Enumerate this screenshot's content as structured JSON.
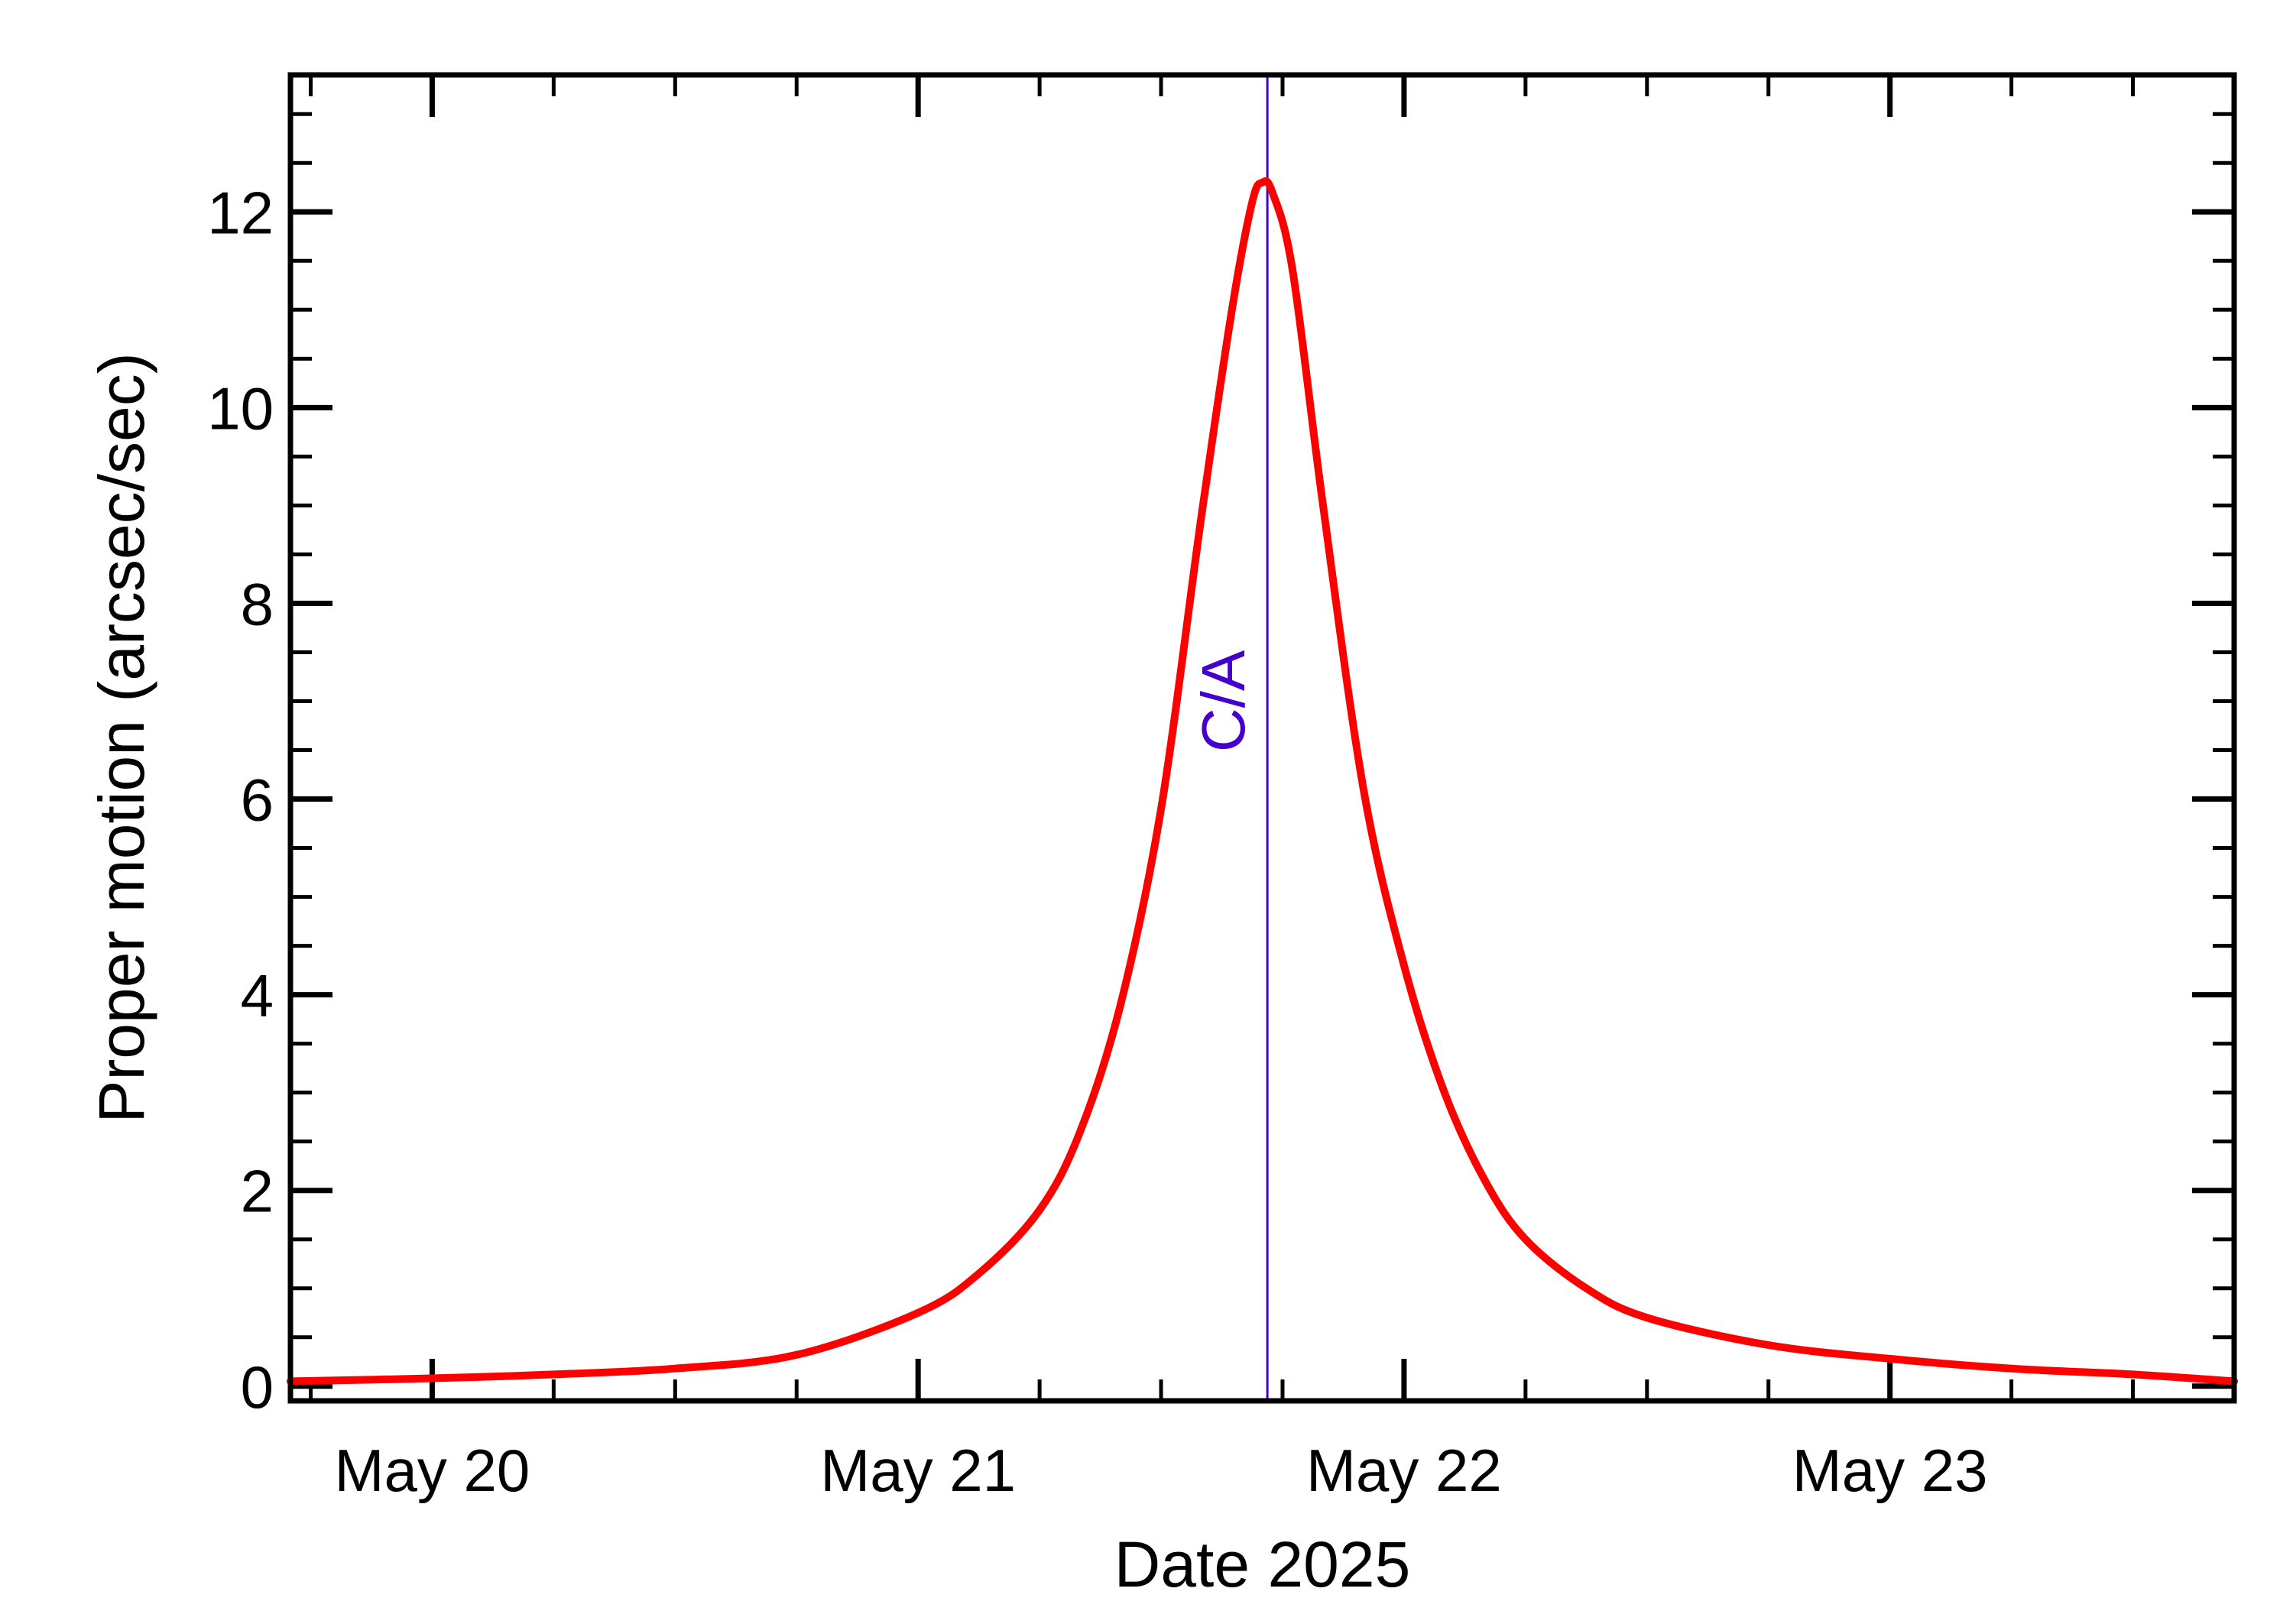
{
  "chart_data": {
    "type": "line",
    "title": "",
    "xlabel": "Date 2025",
    "ylabel": "Proper motion (arcsec/sec)",
    "x_unit": "date",
    "xlim": [
      "2025-05-19 17:00",
      "2025-05-23 17:00"
    ],
    "ylim": [
      -0.15,
      13.4
    ],
    "x_ticks": [
      {
        "label": "May 20",
        "value": "2025-05-20 00:00"
      },
      {
        "label": "May 21",
        "value": "2025-05-21 00:00"
      },
      {
        "label": "May 22",
        "value": "2025-05-22 00:00"
      },
      {
        "label": "May 23",
        "value": "2025-05-23 00:00"
      }
    ],
    "y_ticks": [
      0,
      2,
      4,
      6,
      8,
      10,
      12
    ],
    "y_minor_step": 0.5,
    "grid": false,
    "legend": "none",
    "colors": {
      "series": "#ff0000",
      "annotation": "#4400cc",
      "axes": "#000000"
    },
    "annotation": {
      "label": "C/A",
      "x": "2025-05-21 17:15"
    },
    "series": [
      {
        "points": [
          {
            "x": "2025-05-19 17:00",
            "y": 0.05
          },
          {
            "x": "2025-05-20 00:00",
            "y": 0.08
          },
          {
            "x": "2025-05-20 06:00",
            "y": 0.12
          },
          {
            "x": "2025-05-20 12:00",
            "y": 0.18
          },
          {
            "x": "2025-05-20 18:00",
            "y": 0.32
          },
          {
            "x": "2025-05-21 00:00",
            "y": 0.75
          },
          {
            "x": "2025-05-21 03:00",
            "y": 1.15
          },
          {
            "x": "2025-05-21 06:00",
            "y": 1.8
          },
          {
            "x": "2025-05-21 08:00",
            "y": 2.6
          },
          {
            "x": "2025-05-21 10:00",
            "y": 3.9
          },
          {
            "x": "2025-05-21 12:00",
            "y": 5.9
          },
          {
            "x": "2025-05-21 14:00",
            "y": 8.9
          },
          {
            "x": "2025-05-21 15:30",
            "y": 11.0
          },
          {
            "x": "2025-05-21 16:30",
            "y": 12.1
          },
          {
            "x": "2025-05-21 17:00",
            "y": 12.3
          },
          {
            "x": "2025-05-21 17:30",
            "y": 12.2
          },
          {
            "x": "2025-05-21 18:30",
            "y": 11.4
          },
          {
            "x": "2025-05-21 20:00",
            "y": 9.0
          },
          {
            "x": "2025-05-21 22:00",
            "y": 6.1
          },
          {
            "x": "2025-05-22 00:00",
            "y": 4.3
          },
          {
            "x": "2025-05-22 02:00",
            "y": 3.0
          },
          {
            "x": "2025-05-22 04:00",
            "y": 2.1
          },
          {
            "x": "2025-05-22 06:00",
            "y": 1.5
          },
          {
            "x": "2025-05-22 09:00",
            "y": 1.0
          },
          {
            "x": "2025-05-22 12:00",
            "y": 0.7
          },
          {
            "x": "2025-05-22 18:00",
            "y": 0.42
          },
          {
            "x": "2025-05-23 00:00",
            "y": 0.28
          },
          {
            "x": "2025-05-23 06:00",
            "y": 0.18
          },
          {
            "x": "2025-05-23 12:00",
            "y": 0.12
          },
          {
            "x": "2025-05-23 17:00",
            "y": 0.05
          }
        ]
      }
    ]
  }
}
